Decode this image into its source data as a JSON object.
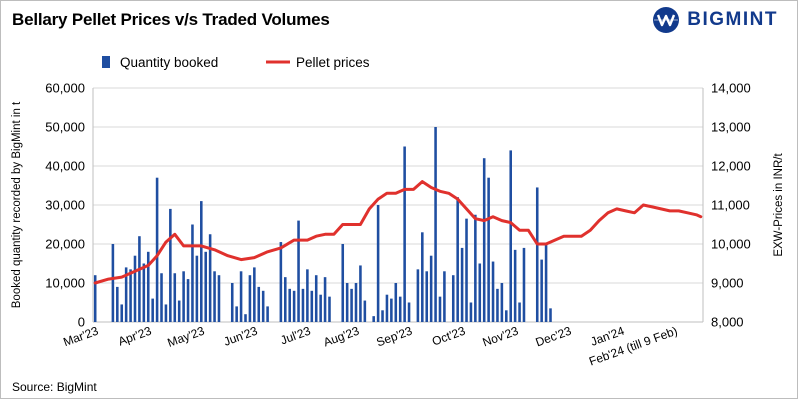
{
  "header": {
    "title": "Bellary Pellet Prices v/s Traded Volumes",
    "brand": "BIGMINT"
  },
  "footer": {
    "source": "Source: BigMint"
  },
  "colors": {
    "bars": "#1f4ea1",
    "line": "#e0312d",
    "brand": "#123a8c"
  },
  "chart_data": {
    "type": "bar",
    "title": "Bellary Pellet Prices v/s Traded Volumes",
    "legend": {
      "position": "top-left",
      "entries": [
        "Quantity booked",
        "Pellet prices"
      ]
    },
    "grid": "horizontal",
    "y_left": {
      "label": "Booked quantity recorded by BigMint in t",
      "range": [
        0,
        60000
      ],
      "ticks": [
        "0",
        "10,000",
        "20,000",
        "30,000",
        "40,000",
        "50,000",
        "60,000"
      ]
    },
    "y_right": {
      "label": "EXW-Prices in INR/t",
      "range": [
        8000,
        14000
      ],
      "ticks": [
        "8,000",
        "9,000",
        "10,000",
        "11,000",
        "12,000",
        "13,000",
        "14,000"
      ]
    },
    "x": {
      "n_points": 138,
      "month_labels": [
        {
          "label": "Mar'23",
          "index": 0
        },
        {
          "label": "Apr'23",
          "index": 12
        },
        {
          "label": "May'23",
          "index": 24
        },
        {
          "label": "Jun'23",
          "index": 36
        },
        {
          "label": "Jul'23",
          "index": 48
        },
        {
          "label": "Aug'23",
          "index": 59
        },
        {
          "label": "Sep'23",
          "index": 71
        },
        {
          "label": "Oct'23",
          "index": 83
        },
        {
          "label": "Nov'23",
          "index": 95
        },
        {
          "label": "Dec'23",
          "index": 107
        },
        {
          "label": "Jan'24",
          "index": 119
        },
        {
          "label": "Feb'24 (till 9 Feb)",
          "index": 131
        }
      ]
    },
    "series": [
      {
        "name": "Quantity booked",
        "type": "bar",
        "axis": "left",
        "points": [
          [
            0,
            12000
          ],
          [
            4,
            20000
          ],
          [
            5,
            9000
          ],
          [
            6,
            4500
          ],
          [
            7,
            14000
          ],
          [
            8,
            13500
          ],
          [
            9,
            17000
          ],
          [
            10,
            22000
          ],
          [
            11,
            15000
          ],
          [
            12,
            18000
          ],
          [
            13,
            6000
          ],
          [
            14,
            37000
          ],
          [
            15,
            12500
          ],
          [
            16,
            4500
          ],
          [
            17,
            29000
          ],
          [
            18,
            12500
          ],
          [
            19,
            5500
          ],
          [
            20,
            13000
          ],
          [
            21,
            11000
          ],
          [
            22,
            25000
          ],
          [
            23,
            17000
          ],
          [
            24,
            31000
          ],
          [
            25,
            18000
          ],
          [
            26,
            22500
          ],
          [
            27,
            13000
          ],
          [
            28,
            12000
          ],
          [
            31,
            10000
          ],
          [
            32,
            4000
          ],
          [
            33,
            13000
          ],
          [
            34,
            2000
          ],
          [
            35,
            12000
          ],
          [
            36,
            14000
          ],
          [
            37,
            9000
          ],
          [
            38,
            8000
          ],
          [
            39,
            4000
          ],
          [
            42,
            20500
          ],
          [
            43,
            11500
          ],
          [
            44,
            8500
          ],
          [
            45,
            8000
          ],
          [
            46,
            26000
          ],
          [
            47,
            8500
          ],
          [
            48,
            13500
          ],
          [
            49,
            8000
          ],
          [
            50,
            12000
          ],
          [
            51,
            7000
          ],
          [
            52,
            11500
          ],
          [
            53,
            6500
          ],
          [
            56,
            20000
          ],
          [
            57,
            10000
          ],
          [
            58,
            8500
          ],
          [
            59,
            10000
          ],
          [
            60,
            14500
          ],
          [
            61,
            5500
          ],
          [
            63,
            1500
          ],
          [
            64,
            30000
          ],
          [
            65,
            3000
          ],
          [
            66,
            7000
          ],
          [
            67,
            6000
          ],
          [
            68,
            10000
          ],
          [
            69,
            6500
          ],
          [
            70,
            45000
          ],
          [
            71,
            5000
          ],
          [
            73,
            13500
          ],
          [
            74,
            23000
          ],
          [
            75,
            13000
          ],
          [
            76,
            17000
          ],
          [
            77,
            50000
          ],
          [
            78,
            6500
          ],
          [
            79,
            13000
          ],
          [
            81,
            12000
          ],
          [
            82,
            32000
          ],
          [
            83,
            19000
          ],
          [
            84,
            26500
          ],
          [
            85,
            5000
          ],
          [
            86,
            27500
          ],
          [
            87,
            15000
          ],
          [
            88,
            42000
          ],
          [
            89,
            37000
          ],
          [
            90,
            15500
          ],
          [
            91,
            8500
          ],
          [
            92,
            10000
          ],
          [
            93,
            3000
          ],
          [
            94,
            44000
          ],
          [
            95,
            18500
          ],
          [
            96,
            5000
          ],
          [
            97,
            19000
          ],
          [
            100,
            34500
          ],
          [
            101,
            16000
          ],
          [
            102,
            20000
          ],
          [
            103,
            3500
          ]
        ]
      },
      {
        "name": "Pellet prices",
        "type": "line",
        "axis": "right",
        "points": [
          [
            0,
            9000
          ],
          [
            3,
            9100
          ],
          [
            6,
            9150
          ],
          [
            9,
            9300
          ],
          [
            12,
            9450
          ],
          [
            14,
            9700
          ],
          [
            16,
            10050
          ],
          [
            18,
            10250
          ],
          [
            20,
            9950
          ],
          [
            24,
            9950
          ],
          [
            27,
            9850
          ],
          [
            30,
            9700
          ],
          [
            33,
            9600
          ],
          [
            36,
            9650
          ],
          [
            39,
            9800
          ],
          [
            42,
            9900
          ],
          [
            45,
            10100
          ],
          [
            48,
            10100
          ],
          [
            50,
            10200
          ],
          [
            52,
            10250
          ],
          [
            54,
            10250
          ],
          [
            56,
            10500
          ],
          [
            58,
            10500
          ],
          [
            60,
            10500
          ],
          [
            62,
            10900
          ],
          [
            64,
            11150
          ],
          [
            66,
            11300
          ],
          [
            68,
            11300
          ],
          [
            70,
            11400
          ],
          [
            72,
            11400
          ],
          [
            74,
            11600
          ],
          [
            76,
            11450
          ],
          [
            78,
            11350
          ],
          [
            80,
            11300
          ],
          [
            82,
            11150
          ],
          [
            84,
            10900
          ],
          [
            86,
            10650
          ],
          [
            88,
            10600
          ],
          [
            90,
            10700
          ],
          [
            92,
            10600
          ],
          [
            94,
            10550
          ],
          [
            96,
            10350
          ],
          [
            98,
            10350
          ],
          [
            100,
            10000
          ],
          [
            102,
            10000
          ],
          [
            104,
            10100
          ],
          [
            106,
            10200
          ],
          [
            108,
            10200
          ],
          [
            110,
            10200
          ],
          [
            112,
            10350
          ],
          [
            114,
            10600
          ],
          [
            116,
            10800
          ],
          [
            118,
            10900
          ],
          [
            120,
            10850
          ],
          [
            122,
            10800
          ],
          [
            124,
            11000
          ],
          [
            126,
            10950
          ],
          [
            128,
            10900
          ],
          [
            130,
            10850
          ],
          [
            132,
            10850
          ],
          [
            134,
            10800
          ],
          [
            136,
            10750
          ],
          [
            137,
            10700
          ]
        ]
      }
    ]
  }
}
